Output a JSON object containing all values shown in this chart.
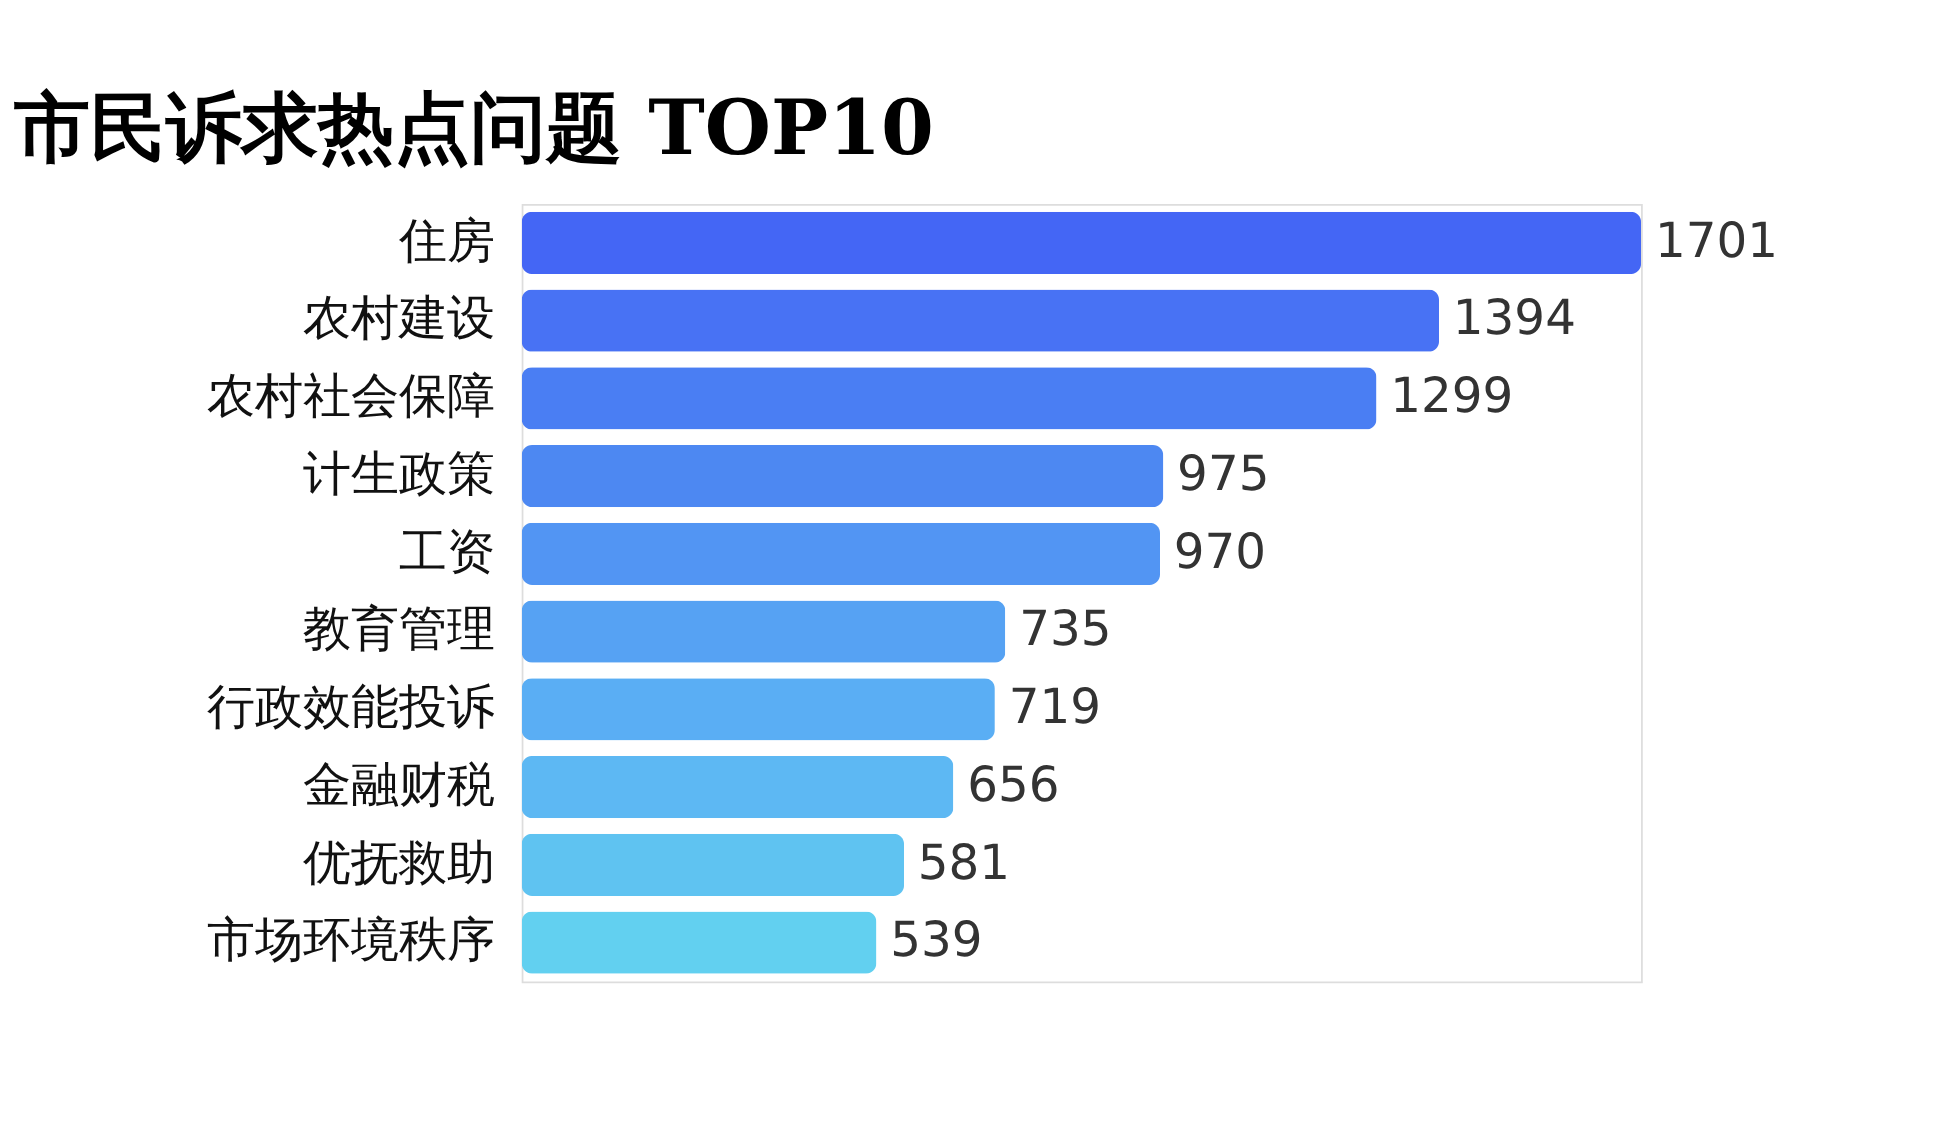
{
  "chart_data": {
    "type": "bar",
    "orientation": "horizontal",
    "title": "市民诉求热点问题 TOP10",
    "categories": [
      "住房",
      "农村建设",
      "农村社会保障",
      "计生政策",
      "工资",
      "教育管理",
      "行政效能投诉",
      "金融财税",
      "优抚救助",
      "市场环境秩序"
    ],
    "values": [
      1701,
      1394,
      1299,
      975,
      970,
      735,
      719,
      656,
      581,
      539
    ],
    "colors": [
      "#4466f5",
      "#4872f4",
      "#4a7ef3",
      "#4d88f2",
      "#5295f3",
      "#56a2f3",
      "#5aaef4",
      "#5db8f3",
      "#5fc3f1",
      "#62d0f0"
    ],
    "data_labels": true
  }
}
